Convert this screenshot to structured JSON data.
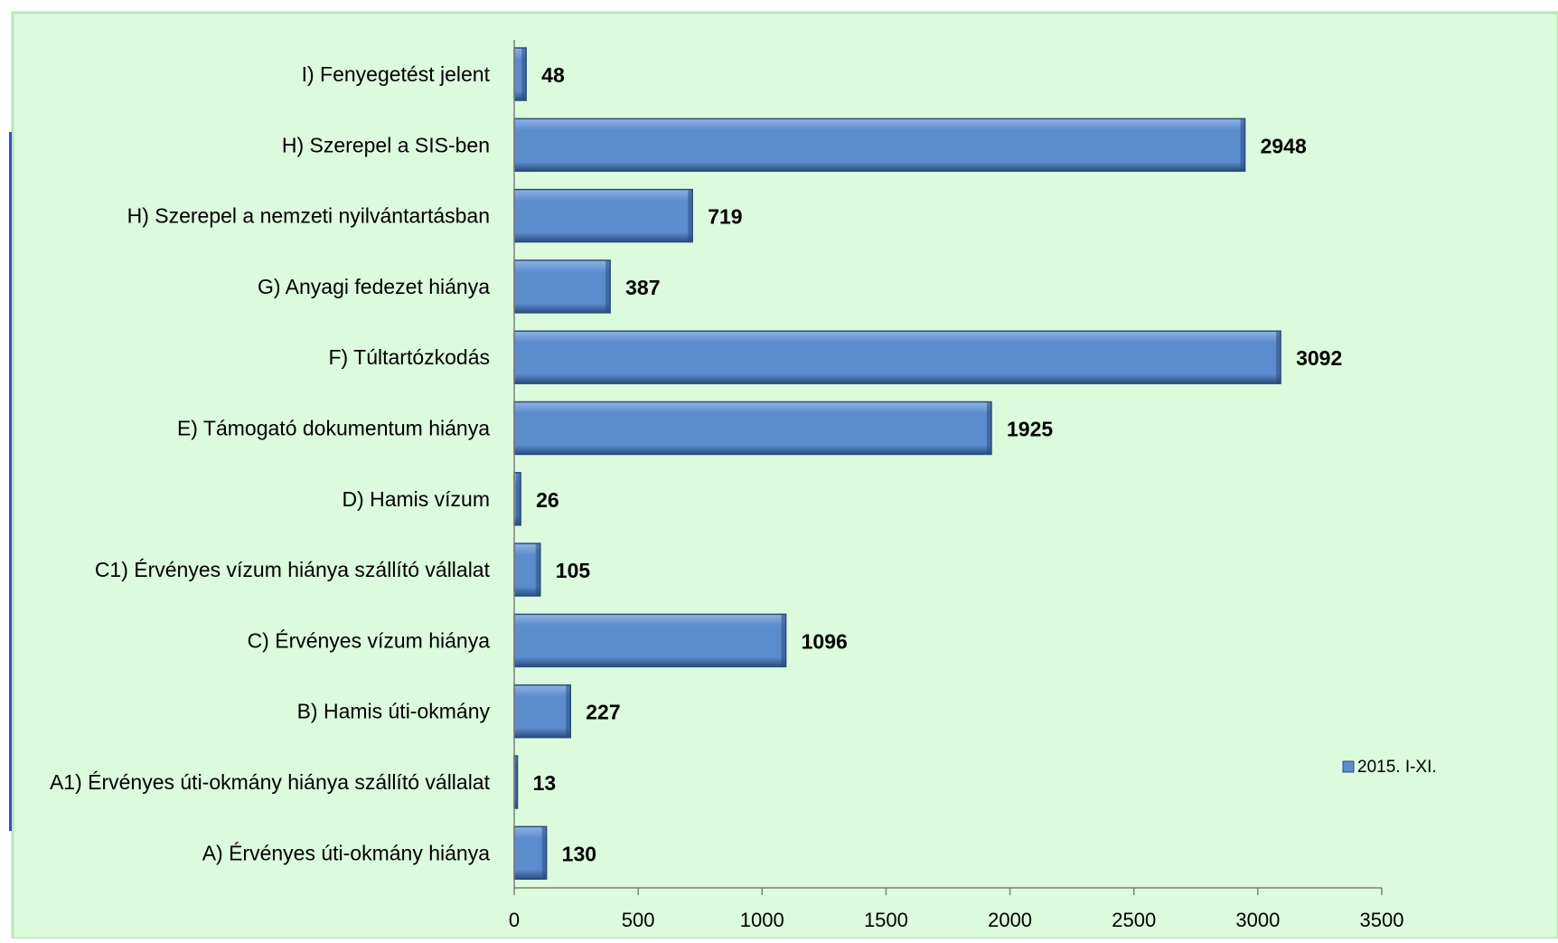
{
  "colors": {
    "plot_background": "#dcfadc",
    "plot_border": "#b8e6b8",
    "bar_fill": "#5b8cce",
    "bar_top": "#8fb3e3",
    "bar_edge": "#2b4d7e",
    "left_accent": "#2f4fd6",
    "axis": "#7f7f7f"
  },
  "chart_data": {
    "type": "bar",
    "orientation": "horizontal",
    "title": "",
    "xlabel": "",
    "ylabel": "",
    "xlim": [
      0,
      3500
    ],
    "x_ticks": [
      0,
      500,
      1000,
      1500,
      2000,
      2500,
      3000,
      3500
    ],
    "grid": false,
    "legend_position": "right",
    "categories": [
      "I) Fenyegetést jelent",
      "H) Szerepel a SIS-ben",
      "H) Szerepel a nemzeti nyilvántartásban",
      "G) Anyagi fedezet hiánya",
      "F) Túltartózkodás",
      "E) Támogató dokumentum hiánya",
      "D) Hamis vízum",
      "C1) Érvényes vízum hiánya szállító vállalat",
      "C) Érvényes vízum hiánya",
      "B) Hamis úti-okmány",
      "A1) Érvényes úti-okmány hiánya szállító vállalat",
      "A) Érvényes úti-okmány hiánya"
    ],
    "series": [
      {
        "name": "2015. I-XI.",
        "values": [
          48,
          2948,
          719,
          387,
          3092,
          1925,
          26,
          105,
          1096,
          227,
          13,
          130
        ]
      }
    ]
  }
}
